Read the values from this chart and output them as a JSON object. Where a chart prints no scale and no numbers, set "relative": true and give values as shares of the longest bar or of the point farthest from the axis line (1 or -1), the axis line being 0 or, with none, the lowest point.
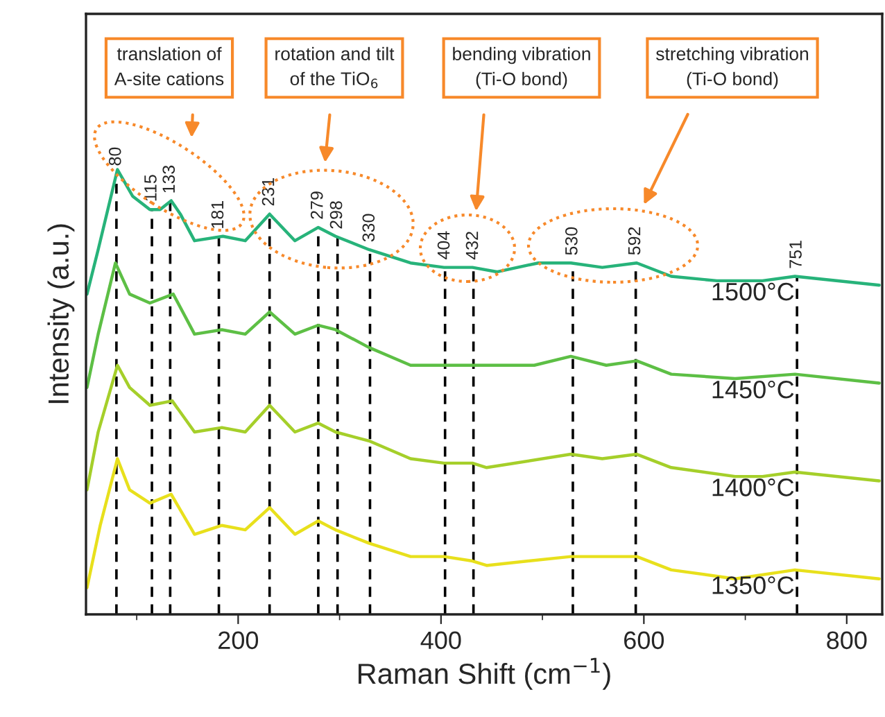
{
  "chart_data": {
    "type": "line",
    "relative": true,
    "xlabel": "Raman Shift (cm$^{−1}$)",
    "ylabel": "Intensity (a.u.)",
    "xlim": [
      50,
      835
    ],
    "xticks": [
      200,
      400,
      600,
      800
    ],
    "tick_labels": "x",
    "grid": false,
    "line_style": "solid",
    "series": [
      {
        "name": "1500°C",
        "color": "#27b37a",
        "x": [
          51,
          62,
          81,
          96,
          113,
          123,
          134,
          143,
          157,
          185,
          207,
          231,
          256,
          279,
          296,
          329,
          370,
          403,
          431,
          455,
          496,
          528,
          559,
          593,
          627,
          672,
          717,
          749,
          832
        ],
        "values": [
          0.72,
          0.82,
          1.0,
          0.94,
          0.91,
          0.91,
          0.93,
          0.9,
          0.84,
          0.85,
          0.84,
          0.9,
          0.84,
          0.87,
          0.85,
          0.82,
          0.79,
          0.78,
          0.78,
          0.77,
          0.79,
          0.79,
          0.78,
          0.79,
          0.76,
          0.75,
          0.75,
          0.76,
          0.74
        ]
      },
      {
        "name": "1450°C",
        "color": "#5dbf45",
        "x": [
          51,
          62,
          79,
          93,
          113,
          136,
          157,
          184,
          207,
          231,
          256,
          279,
          296,
          329,
          370,
          403,
          431,
          445,
          492,
          528,
          563,
          593,
          627,
          690,
          749,
          832
        ],
        "values": [
          0.51,
          0.63,
          0.79,
          0.72,
          0.7,
          0.72,
          0.63,
          0.64,
          0.63,
          0.68,
          0.63,
          0.65,
          0.64,
          0.6,
          0.56,
          0.56,
          0.56,
          0.56,
          0.56,
          0.58,
          0.56,
          0.57,
          0.54,
          0.53,
          0.54,
          0.52
        ]
      },
      {
        "name": "1400°C",
        "color": "#a5cf2a",
        "x": [
          51,
          62,
          81,
          93,
          113,
          135,
          157,
          184,
          207,
          231,
          256,
          279,
          296,
          329,
          370,
          403,
          431,
          445,
          528,
          559,
          593,
          627,
          690,
          717,
          749,
          832
        ],
        "values": [
          0.28,
          0.41,
          0.56,
          0.51,
          0.47,
          0.48,
          0.41,
          0.42,
          0.41,
          0.47,
          0.41,
          0.43,
          0.41,
          0.39,
          0.35,
          0.34,
          0.34,
          0.33,
          0.36,
          0.35,
          0.36,
          0.33,
          0.31,
          0.31,
          0.32,
          0.3
        ]
      },
      {
        "name": "1350°C",
        "color": "#e8e01c",
        "x": [
          51,
          64,
          81,
          93,
          113,
          134,
          157,
          184,
          207,
          231,
          256,
          279,
          296,
          329,
          370,
          403,
          431,
          445,
          528,
          559,
          593,
          627,
          690,
          749,
          832
        ],
        "values": [
          0.06,
          0.2,
          0.35,
          0.28,
          0.25,
          0.27,
          0.18,
          0.2,
          0.19,
          0.24,
          0.18,
          0.21,
          0.19,
          0.16,
          0.13,
          0.13,
          0.12,
          0.11,
          0.13,
          0.13,
          0.13,
          0.1,
          0.08,
          0.1,
          0.08
        ]
      }
    ],
    "ref_lines": [
      {
        "axis": "x",
        "value": 80,
        "label": "80",
        "color": "#000000",
        "line_style": "dashed"
      },
      {
        "axis": "x",
        "value": 115,
        "label": "115",
        "color": "#000000",
        "line_style": "dashed"
      },
      {
        "axis": "x",
        "value": 133,
        "label": "133",
        "color": "#000000",
        "line_style": "dashed"
      },
      {
        "axis": "x",
        "value": 181,
        "label": "181",
        "color": "#000000",
        "line_style": "dashed"
      },
      {
        "axis": "x",
        "value": 231,
        "label": "231",
        "color": "#000000",
        "line_style": "dashed"
      },
      {
        "axis": "x",
        "value": 279,
        "label": "279",
        "color": "#000000",
        "line_style": "dashed"
      },
      {
        "axis": "x",
        "value": 298,
        "label": "298",
        "color": "#000000",
        "line_style": "dashed"
      },
      {
        "axis": "x",
        "value": 330,
        "label": "330",
        "color": "#000000",
        "line_style": "dashed"
      },
      {
        "axis": "x",
        "value": 404,
        "label": "404",
        "color": "#000000",
        "line_style": "dashed"
      },
      {
        "axis": "x",
        "value": 432,
        "label": "432",
        "color": "#000000",
        "line_style": "dashed"
      },
      {
        "axis": "x",
        "value": 530,
        "label": "530",
        "color": "#000000",
        "line_style": "dashed"
      },
      {
        "axis": "x",
        "value": 592,
        "label": "592",
        "color": "#000000",
        "line_style": "dashed"
      },
      {
        "axis": "x",
        "value": 751,
        "label": "751",
        "color": "#000000",
        "line_style": "dashed"
      }
    ],
    "annotations": [
      "translation of\nA-site cations",
      "rotation and tilt\nof the TiO$_{6}$",
      "bending vibration\n(Ti-O bond)",
      "stretching vibration\n(Ti-O bond)"
    ]
  }
}
